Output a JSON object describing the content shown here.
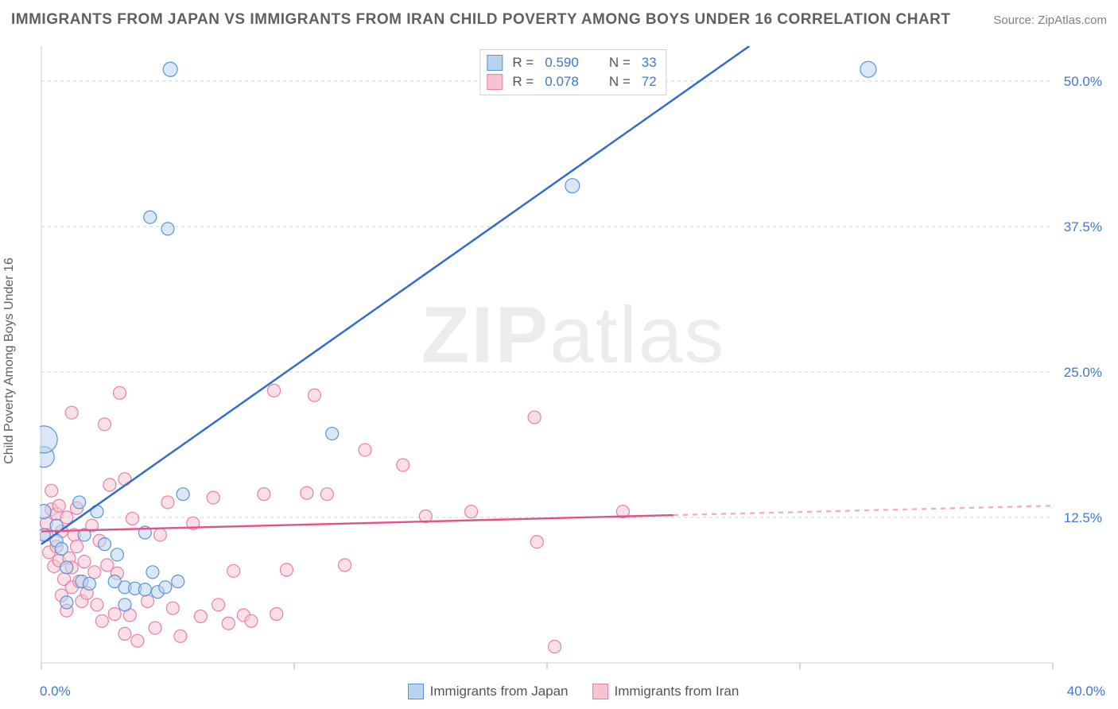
{
  "title": "IMMIGRANTS FROM JAPAN VS IMMIGRANTS FROM IRAN CHILD POVERTY AMONG BOYS UNDER 16 CORRELATION CHART",
  "source_prefix": "Source: ",
  "source_name": "ZipAtlas.com",
  "yaxis_label": "Child Poverty Among Boys Under 16",
  "watermark_bold": "ZIP",
  "watermark_normal": "atlas",
  "background_color": "#ffffff",
  "grid_color": "#d0d0d0",
  "axis_color": "#d0d0d0",
  "tick_color": "#b0b0b0",
  "label_color": "#3d77d4",
  "xlim": [
    0.0,
    40.0
  ],
  "ylim": [
    0.0,
    53.0
  ],
  "x_ticks": [
    0,
    10,
    20,
    30,
    40
  ],
  "x_tick_labels_show": false,
  "x_min_label": "0.0%",
  "x_max_label": "40.0%",
  "y_ticks": [
    {
      "v": 12.5,
      "label": "12.5%"
    },
    {
      "v": 25.0,
      "label": "25.0%"
    },
    {
      "v": 37.5,
      "label": "37.5%"
    },
    {
      "v": 50.0,
      "label": "50.0%"
    }
  ],
  "series": [
    {
      "id": "japan",
      "legend_label": "Immigrants from Japan",
      "fill": "#b9d3ef",
      "stroke": "#5a94d6",
      "fill_opacity": 0.55,
      "line_solid_color": "#2e6bd1",
      "line_dash_color": "#9fbfe8",
      "line_width": 2.4,
      "R": "0.590",
      "N": "33",
      "points": [
        {
          "x": 0.1,
          "y": 17.7,
          "r": 13
        },
        {
          "x": 0.1,
          "y": 19.2,
          "r": 17
        },
        {
          "x": 0.1,
          "y": 13.0,
          "r": 9
        },
        {
          "x": 0.1,
          "y": 11.0,
          "r": 8
        },
        {
          "x": 0.6,
          "y": 11.8,
          "r": 8
        },
        {
          "x": 0.6,
          "y": 10.5,
          "r": 8
        },
        {
          "x": 0.8,
          "y": 9.8,
          "r": 8
        },
        {
          "x": 1.0,
          "y": 8.2,
          "r": 8
        },
        {
          "x": 1.0,
          "y": 5.2,
          "r": 8
        },
        {
          "x": 1.5,
          "y": 13.8,
          "r": 8
        },
        {
          "x": 1.6,
          "y": 7.0,
          "r": 8
        },
        {
          "x": 1.7,
          "y": 11.0,
          "r": 8
        },
        {
          "x": 1.9,
          "y": 6.8,
          "r": 8
        },
        {
          "x": 2.2,
          "y": 13.0,
          "r": 8
        },
        {
          "x": 2.5,
          "y": 10.2,
          "r": 8
        },
        {
          "x": 2.9,
          "y": 7.0,
          "r": 8
        },
        {
          "x": 3.0,
          "y": 9.3,
          "r": 8
        },
        {
          "x": 3.3,
          "y": 6.5,
          "r": 8
        },
        {
          "x": 3.7,
          "y": 6.4,
          "r": 8
        },
        {
          "x": 3.3,
          "y": 5.0,
          "r": 8
        },
        {
          "x": 4.1,
          "y": 6.3,
          "r": 8
        },
        {
          "x": 4.1,
          "y": 11.2,
          "r": 8
        },
        {
          "x": 4.4,
          "y": 7.8,
          "r": 8
        },
        {
          "x": 4.6,
          "y": 6.1,
          "r": 8
        },
        {
          "x": 4.9,
          "y": 6.5,
          "r": 8
        },
        {
          "x": 5.4,
          "y": 7.0,
          "r": 8
        },
        {
          "x": 5.1,
          "y": 51.0,
          "r": 9
        },
        {
          "x": 4.3,
          "y": 38.3,
          "r": 8
        },
        {
          "x": 5.0,
          "y": 37.3,
          "r": 8
        },
        {
          "x": 5.6,
          "y": 14.5,
          "r": 8
        },
        {
          "x": 11.5,
          "y": 19.7,
          "r": 8
        },
        {
          "x": 21.0,
          "y": 41.0,
          "r": 9
        },
        {
          "x": 32.7,
          "y": 51.0,
          "r": 10
        }
      ],
      "trend_solid": {
        "x1": 0.0,
        "y1": 10.2,
        "x2": 28.0,
        "y2": 53.0
      },
      "trend_dash": {
        "x1": 0.0,
        "y1": 10.2,
        "x2": 28.0,
        "y2": 53.0
      }
    },
    {
      "id": "iran",
      "legend_label": "Immigrants from Iran",
      "fill": "#f6c4d1",
      "stroke": "#e97fa2",
      "fill_opacity": 0.55,
      "line_solid_color": "#e64f88",
      "line_dash_color": "#f2aebe",
      "line_width": 2.4,
      "R": "0.078",
      "N": "72",
      "points": [
        {
          "x": 0.2,
          "y": 12.0,
          "r": 8
        },
        {
          "x": 0.2,
          "y": 11.0,
          "r": 8
        },
        {
          "x": 0.3,
          "y": 9.5,
          "r": 8
        },
        {
          "x": 0.4,
          "y": 13.2,
          "r": 8
        },
        {
          "x": 0.4,
          "y": 14.8,
          "r": 8
        },
        {
          "x": 0.5,
          "y": 8.3,
          "r": 8
        },
        {
          "x": 0.6,
          "y": 12.8,
          "r": 8
        },
        {
          "x": 0.6,
          "y": 10.0,
          "r": 8
        },
        {
          "x": 0.7,
          "y": 8.8,
          "r": 8
        },
        {
          "x": 0.7,
          "y": 13.5,
          "r": 8
        },
        {
          "x": 0.8,
          "y": 11.3,
          "r": 8
        },
        {
          "x": 0.8,
          "y": 5.8,
          "r": 8
        },
        {
          "x": 0.9,
          "y": 7.2,
          "r": 8
        },
        {
          "x": 1.0,
          "y": 12.5,
          "r": 8
        },
        {
          "x": 1.0,
          "y": 4.5,
          "r": 8
        },
        {
          "x": 1.1,
          "y": 9.0,
          "r": 8
        },
        {
          "x": 1.2,
          "y": 6.5,
          "r": 8
        },
        {
          "x": 1.2,
          "y": 8.2,
          "r": 8
        },
        {
          "x": 1.2,
          "y": 21.5,
          "r": 8
        },
        {
          "x": 1.3,
          "y": 11.0,
          "r": 8
        },
        {
          "x": 1.4,
          "y": 10.0,
          "r": 8
        },
        {
          "x": 1.4,
          "y": 13.3,
          "r": 8
        },
        {
          "x": 1.5,
          "y": 7.0,
          "r": 8
        },
        {
          "x": 1.6,
          "y": 5.3,
          "r": 8
        },
        {
          "x": 1.7,
          "y": 8.7,
          "r": 8
        },
        {
          "x": 1.8,
          "y": 6.0,
          "r": 8
        },
        {
          "x": 2.0,
          "y": 11.8,
          "r": 8
        },
        {
          "x": 2.1,
          "y": 7.8,
          "r": 8
        },
        {
          "x": 2.2,
          "y": 5.0,
          "r": 8
        },
        {
          "x": 2.3,
          "y": 10.5,
          "r": 8
        },
        {
          "x": 2.4,
          "y": 3.6,
          "r": 8
        },
        {
          "x": 2.5,
          "y": 20.5,
          "r": 8
        },
        {
          "x": 2.6,
          "y": 8.4,
          "r": 8
        },
        {
          "x": 2.7,
          "y": 15.3,
          "r": 8
        },
        {
          "x": 2.9,
          "y": 4.2,
          "r": 8
        },
        {
          "x": 3.0,
          "y": 7.7,
          "r": 8
        },
        {
          "x": 3.1,
          "y": 23.2,
          "r": 8
        },
        {
          "x": 3.3,
          "y": 2.5,
          "r": 8
        },
        {
          "x": 3.3,
          "y": 15.8,
          "r": 8
        },
        {
          "x": 3.5,
          "y": 4.1,
          "r": 8
        },
        {
          "x": 3.6,
          "y": 12.4,
          "r": 8
        },
        {
          "x": 3.8,
          "y": 1.9,
          "r": 8
        },
        {
          "x": 4.2,
          "y": 5.3,
          "r": 8
        },
        {
          "x": 4.5,
          "y": 3.0,
          "r": 8
        },
        {
          "x": 4.7,
          "y": 11.0,
          "r": 8
        },
        {
          "x": 5.0,
          "y": 13.8,
          "r": 8
        },
        {
          "x": 5.2,
          "y": 4.7,
          "r": 8
        },
        {
          "x": 5.5,
          "y": 2.3,
          "r": 8
        },
        {
          "x": 6.0,
          "y": 12.0,
          "r": 8
        },
        {
          "x": 6.3,
          "y": 4.0,
          "r": 8
        },
        {
          "x": 6.8,
          "y": 14.2,
          "r": 8
        },
        {
          "x": 7.0,
          "y": 5.0,
          "r": 8
        },
        {
          "x": 7.4,
          "y": 3.4,
          "r": 8
        },
        {
          "x": 7.6,
          "y": 7.9,
          "r": 8
        },
        {
          "x": 8.0,
          "y": 4.1,
          "r": 8
        },
        {
          "x": 8.3,
          "y": 3.6,
          "r": 8
        },
        {
          "x": 8.8,
          "y": 14.5,
          "r": 8
        },
        {
          "x": 9.2,
          "y": 23.4,
          "r": 8
        },
        {
          "x": 9.3,
          "y": 4.2,
          "r": 8
        },
        {
          "x": 9.7,
          "y": 8.0,
          "r": 8
        },
        {
          "x": 10.5,
          "y": 14.6,
          "r": 8
        },
        {
          "x": 10.8,
          "y": 23.0,
          "r": 8
        },
        {
          "x": 11.3,
          "y": 14.5,
          "r": 8
        },
        {
          "x": 12.0,
          "y": 8.4,
          "r": 8
        },
        {
          "x": 12.8,
          "y": 18.3,
          "r": 8
        },
        {
          "x": 14.3,
          "y": 17.0,
          "r": 8
        },
        {
          "x": 15.2,
          "y": 12.6,
          "r": 8
        },
        {
          "x": 17.0,
          "y": 13.0,
          "r": 8
        },
        {
          "x": 19.5,
          "y": 21.1,
          "r": 8
        },
        {
          "x": 19.6,
          "y": 10.4,
          "r": 8
        },
        {
          "x": 20.3,
          "y": 1.4,
          "r": 8
        },
        {
          "x": 23.0,
          "y": 13.0,
          "r": 8
        }
      ],
      "trend_solid": {
        "x1": 0.0,
        "y1": 11.3,
        "x2": 25.0,
        "y2": 12.7
      },
      "trend_dash": {
        "x1": 25.0,
        "y1": 12.7,
        "x2": 40.0,
        "y2": 13.5
      }
    }
  ],
  "legend_top": {
    "R_label": "R =",
    "N_label": "N ="
  },
  "bottom_legend_items": [
    {
      "series": "japan"
    },
    {
      "series": "iran"
    }
  ]
}
